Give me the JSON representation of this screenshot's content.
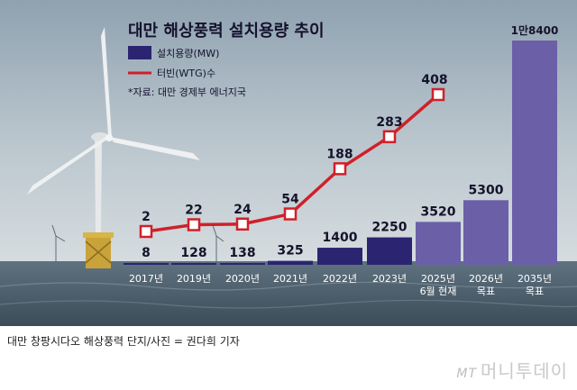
{
  "chart_data": {
    "type": "bar+line",
    "title": "대만 해상풍력 설치용량 추이",
    "categories": [
      [
        "2017년"
      ],
      [
        "2019년"
      ],
      [
        "2020년"
      ],
      [
        "2021년"
      ],
      [
        "2022년"
      ],
      [
        "2023년"
      ],
      [
        "2025년",
        "6월 현재"
      ],
      [
        "2026년",
        "목표"
      ],
      [
        "2035년",
        "목표"
      ]
    ],
    "bar_series": {
      "name": "설치용량(MW)",
      "values": [
        8,
        128,
        138,
        325,
        1400,
        2250,
        3520,
        5300,
        18400
      ],
      "labels": [
        "8",
        "128",
        "138",
        "325",
        "1400",
        "2250",
        "3520",
        "5300",
        "1만8400"
      ],
      "color_actual": "#2b2470",
      "color_target": "#6b5fa8"
    },
    "line_series": {
      "name": "터빈(WTG)수",
      "values": [
        2,
        22,
        24,
        54,
        188,
        283,
        408
      ],
      "labels": [
        "2",
        "22",
        "24",
        "54",
        "188",
        "283",
        "408"
      ],
      "color": "#d0202a"
    },
    "source_note": "*자료: 대만 경제부 에너지국"
  },
  "caption": "대만 창팡시다오 해상풍력 단지/사진 = 권다희 기자",
  "logo": {
    "mt": "MT",
    "name": "머니투데이"
  }
}
